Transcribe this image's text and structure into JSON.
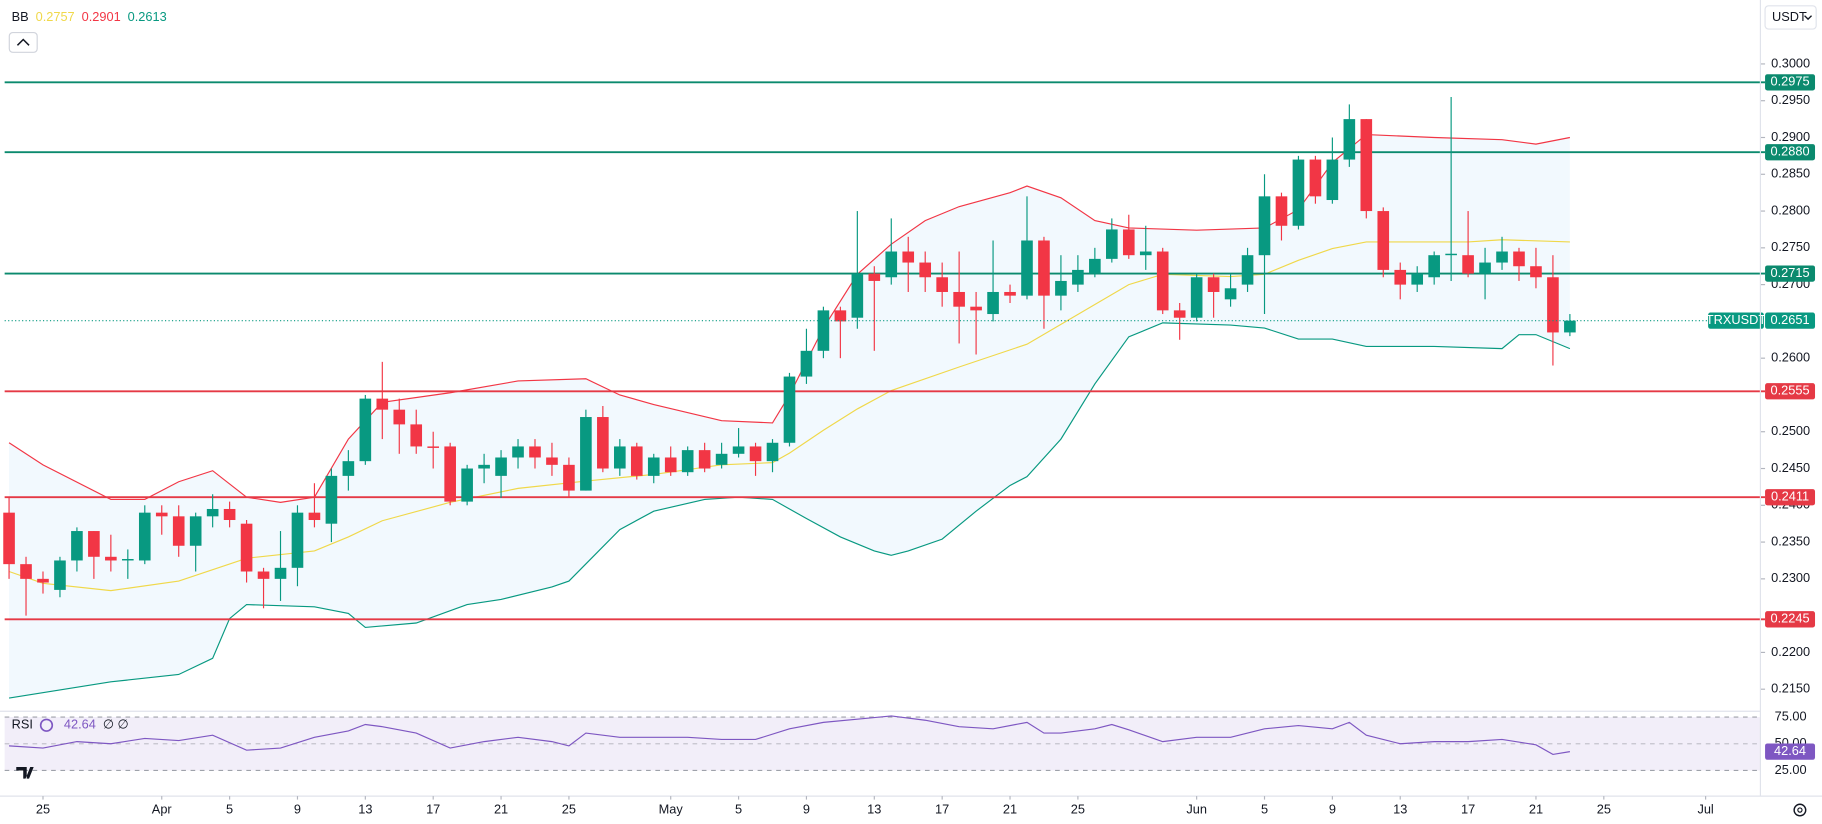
{
  "header": {
    "currency": "USDT"
  },
  "chart_data": [
    {
      "type": "candlestick",
      "symbol": "TRXUSDT",
      "indicator": "BB",
      "indicator_values": [
        0.2757,
        0.2901,
        0.2613
      ],
      "last": 0.2651,
      "last_color": "#089981",
      "up_color": "#089981",
      "down_color": "#f23645",
      "band_fill": "#2196f3",
      "x": [
        -2,
        -1,
        0,
        1,
        2,
        3,
        4,
        5,
        6,
        7,
        8,
        9,
        10,
        11,
        12,
        13,
        14,
        15,
        16,
        17,
        18,
        19,
        20,
        21,
        22,
        23,
        24,
        25,
        26,
        27,
        28,
        29,
        30,
        31,
        32,
        33,
        34,
        35,
        36,
        37,
        38,
        39,
        40,
        41,
        42,
        43,
        44,
        45,
        46,
        47,
        48,
        49,
        50,
        51,
        52,
        53,
        54,
        55,
        56,
        57,
        58,
        59,
        60,
        61,
        62,
        63,
        64,
        65,
        66,
        67,
        68,
        69,
        70,
        71,
        72,
        73,
        74,
        75,
        76,
        77,
        78,
        79,
        80,
        81,
        82,
        83,
        84,
        85,
        86,
        87,
        88,
        89,
        90
      ],
      "open": [
        0.239,
        0.232,
        0.23,
        0.2285,
        0.2325,
        0.2365,
        0.233,
        0.2325,
        0.2325,
        0.239,
        0.2385,
        0.2345,
        0.2385,
        0.2395,
        0.2375,
        0.231,
        0.23,
        0.2315,
        0.239,
        0.2375,
        0.244,
        0.246,
        0.2545,
        0.253,
        0.251,
        0.248,
        0.248,
        0.2405,
        0.245,
        0.244,
        0.2465,
        0.248,
        0.2465,
        0.2455,
        0.242,
        0.252,
        0.245,
        0.248,
        0.244,
        0.2465,
        0.2445,
        0.2475,
        0.2455,
        0.247,
        0.248,
        0.246,
        0.2485,
        0.2575,
        0.261,
        0.2665,
        0.2655,
        0.2715,
        0.271,
        0.2745,
        0.273,
        0.271,
        0.269,
        0.267,
        0.266,
        0.269,
        0.2685,
        0.276,
        0.2685,
        0.27,
        0.2715,
        0.2735,
        0.2775,
        0.274,
        0.2745,
        0.2665,
        0.2655,
        0.271,
        0.268,
        0.27,
        0.274,
        0.282,
        0.278,
        0.287,
        0.2815,
        0.287,
        0.2925,
        0.28,
        0.272,
        0.27,
        0.271,
        0.274,
        0.274,
        0.2715,
        0.273,
        0.2745,
        0.2725,
        0.271,
        0.2635
      ],
      "close": [
        0.232,
        0.23,
        0.2295,
        0.2325,
        0.2365,
        0.233,
        0.2325,
        0.2327,
        0.239,
        0.2385,
        0.2345,
        0.2385,
        0.2395,
        0.238,
        0.231,
        0.23,
        0.2315,
        0.239,
        0.238,
        0.244,
        0.246,
        0.2545,
        0.253,
        0.251,
        0.248,
        0.2478,
        0.2405,
        0.245,
        0.2455,
        0.2465,
        0.248,
        0.2465,
        0.2455,
        0.242,
        0.252,
        0.245,
        0.248,
        0.244,
        0.2465,
        0.2445,
        0.2475,
        0.245,
        0.247,
        0.248,
        0.246,
        0.2485,
        0.2575,
        0.261,
        0.2665,
        0.265,
        0.2715,
        0.2705,
        0.2745,
        0.273,
        0.271,
        0.269,
        0.267,
        0.2665,
        0.269,
        0.2685,
        0.276,
        0.2685,
        0.2705,
        0.272,
        0.2735,
        0.2775,
        0.274,
        0.2745,
        0.2665,
        0.2655,
        0.271,
        0.269,
        0.2695,
        0.274,
        0.282,
        0.278,
        0.287,
        0.282,
        0.287,
        0.2925,
        0.28,
        0.272,
        0.27,
        0.2715,
        0.274,
        0.2742,
        0.2715,
        0.273,
        0.2745,
        0.2725,
        0.271,
        0.2635,
        0.2651
      ],
      "high": [
        0.241,
        0.233,
        0.231,
        0.233,
        0.237,
        0.2365,
        0.236,
        0.234,
        0.24,
        0.24,
        0.24,
        0.239,
        0.2415,
        0.2405,
        0.238,
        0.2315,
        0.2365,
        0.24,
        0.243,
        0.245,
        0.2475,
        0.255,
        0.2595,
        0.2545,
        0.253,
        0.25,
        0.2485,
        0.2455,
        0.247,
        0.2475,
        0.249,
        0.249,
        0.2485,
        0.2465,
        0.253,
        0.2535,
        0.249,
        0.2485,
        0.247,
        0.248,
        0.248,
        0.2485,
        0.2485,
        0.2505,
        0.2485,
        0.249,
        0.258,
        0.264,
        0.267,
        0.267,
        0.28,
        0.2725,
        0.279,
        0.2765,
        0.2745,
        0.273,
        0.2745,
        0.269,
        0.276,
        0.27,
        0.282,
        0.2765,
        0.274,
        0.274,
        0.275,
        0.279,
        0.2795,
        0.278,
        0.275,
        0.2675,
        0.2715,
        0.2715,
        0.2715,
        0.275,
        0.285,
        0.2825,
        0.2875,
        0.2875,
        0.29,
        0.2945,
        0.2925,
        0.2805,
        0.273,
        0.2725,
        0.2745,
        0.2955,
        0.28,
        0.275,
        0.2765,
        0.275,
        0.275,
        0.274,
        0.266
      ],
      "low": [
        0.23,
        0.225,
        0.228,
        0.2275,
        0.231,
        0.23,
        0.231,
        0.23,
        0.232,
        0.236,
        0.233,
        0.231,
        0.237,
        0.237,
        0.2295,
        0.226,
        0.227,
        0.229,
        0.237,
        0.235,
        0.242,
        0.2455,
        0.249,
        0.247,
        0.247,
        0.245,
        0.24,
        0.24,
        0.243,
        0.241,
        0.245,
        0.245,
        0.244,
        0.241,
        0.242,
        0.2445,
        0.244,
        0.2435,
        0.243,
        0.244,
        0.244,
        0.2445,
        0.245,
        0.2465,
        0.244,
        0.2445,
        0.248,
        0.2565,
        0.26,
        0.26,
        0.264,
        0.261,
        0.27,
        0.269,
        0.269,
        0.267,
        0.262,
        0.2605,
        0.265,
        0.2675,
        0.268,
        0.264,
        0.2665,
        0.269,
        0.271,
        0.273,
        0.2735,
        0.272,
        0.266,
        0.2625,
        0.265,
        0.2655,
        0.267,
        0.269,
        0.266,
        0.276,
        0.2775,
        0.281,
        0.281,
        0.286,
        0.279,
        0.271,
        0.268,
        0.269,
        0.27,
        0.2705,
        0.271,
        0.268,
        0.272,
        0.2705,
        0.2695,
        0.259,
        0.263
      ],
      "bands": [
        {
          "color": "#f0d84a",
          "x": [
            -2,
            0,
            4,
            8,
            12,
            16,
            18,
            20,
            24,
            28,
            32,
            36,
            40,
            43,
            44,
            46,
            48,
            50,
            54,
            58,
            62,
            64,
            66,
            70,
            72,
            74,
            76,
            78,
            84,
            86,
            90
          ],
          "values": [
            0.231,
            0.2294,
            0.2284,
            0.2297,
            0.2328,
            0.2338,
            0.2357,
            0.2379,
            0.2404,
            0.2423,
            0.2433,
            0.2442,
            0.2455,
            0.2458,
            0.2471,
            0.2502,
            0.2531,
            0.2556,
            0.2588,
            0.2619,
            0.2673,
            0.27,
            0.2714,
            0.2711,
            0.2714,
            0.2733,
            0.2749,
            0.2758,
            0.2758,
            0.2761,
            0.2758
          ]
        },
        {
          "color": "#f23645",
          "x": [
            -2,
            0,
            4,
            6,
            8,
            10,
            12,
            14,
            16,
            18,
            20,
            24,
            28,
            32,
            34,
            36,
            40,
            43,
            44,
            46,
            48,
            50,
            52,
            54,
            57,
            58,
            60,
            62,
            64,
            68,
            72,
            74,
            76,
            78,
            82,
            86,
            88,
            90
          ],
          "values": [
            0.2485,
            0.2455,
            0.2408,
            0.2408,
            0.2432,
            0.2447,
            0.2411,
            0.2404,
            0.2411,
            0.249,
            0.254,
            0.2553,
            0.2569,
            0.2572,
            0.255,
            0.2537,
            0.2515,
            0.2512,
            0.255,
            0.2641,
            0.2714,
            0.2755,
            0.2787,
            0.2806,
            0.2825,
            0.2834,
            0.2818,
            0.2787,
            0.2777,
            0.2774,
            0.2777,
            0.2802,
            0.2866,
            0.2904,
            0.29,
            0.2897,
            0.2891,
            0.29
          ]
        },
        {
          "color": "#089981",
          "x": [
            -2,
            4,
            8,
            10,
            11,
            12,
            16,
            18,
            19,
            22,
            25,
            27,
            30,
            31,
            34,
            36,
            39,
            41,
            43,
            45,
            47,
            49,
            50,
            51,
            53,
            55,
            57,
            58,
            60,
            62,
            64,
            66,
            70,
            72,
            74,
            76,
            78,
            82,
            86,
            87,
            88,
            90
          ],
          "values": [
            0.2138,
            0.216,
            0.217,
            0.2192,
            0.2246,
            0.2265,
            0.2262,
            0.2253,
            0.2234,
            0.224,
            0.2265,
            0.2272,
            0.2289,
            0.2297,
            0.2367,
            0.2392,
            0.2408,
            0.2411,
            0.2408,
            0.2382,
            0.2357,
            0.2338,
            0.2332,
            0.2338,
            0.2354,
            0.2392,
            0.2427,
            0.2439,
            0.249,
            0.2565,
            0.2629,
            0.2648,
            0.2645,
            0.2641,
            0.2626,
            0.2626,
            0.2616,
            0.2616,
            0.2613,
            0.2632,
            0.2632,
            0.2613
          ]
        }
      ],
      "levels": [
        {
          "value": 0.2975,
          "label": "0.2975",
          "color": "#0b8a6e"
        },
        {
          "value": 0.288,
          "label": "0.2880",
          "color": "#0b8a6e"
        },
        {
          "value": 0.2715,
          "label": "0.2715",
          "color": "#0b8a6e"
        },
        {
          "value": 0.2555,
          "label": "0.2555",
          "color": "#e53945"
        },
        {
          "value": 0.2411,
          "label": "0.2411",
          "color": "#e53945"
        },
        {
          "value": 0.2245,
          "label": "0.2245",
          "color": "#e53945"
        }
      ],
      "xlim": [
        -2.26,
        101.23
      ],
      "ylim": [
        0.212,
        0.3049
      ],
      "yticks": [
        {
          "value": 0.3,
          "label": "0.3000"
        },
        {
          "value": 0.295,
          "label": "0.2950"
        },
        {
          "value": 0.29,
          "label": "0.2900"
        },
        {
          "value": 0.285,
          "label": "0.2850"
        },
        {
          "value": 0.28,
          "label": "0.2800"
        },
        {
          "value": 0.275,
          "label": "0.2750"
        },
        {
          "value": 0.27,
          "label": "0.2700"
        },
        {
          "value": 0.26,
          "label": "0.2600"
        },
        {
          "value": 0.25,
          "label": "0.2500"
        },
        {
          "value": 0.245,
          "label": "0.2450"
        },
        {
          "value": 0.24,
          "label": "0.2400"
        },
        {
          "value": 0.235,
          "label": "0.2350"
        },
        {
          "value": 0.23,
          "label": "0.2300"
        },
        {
          "value": 0.22,
          "label": "0.2200"
        },
        {
          "value": 0.215,
          "label": "0.2150"
        }
      ],
      "xticks": [
        {
          "value": 0,
          "label": "25"
        },
        {
          "value": 7,
          "label": "Apr"
        },
        {
          "value": 11,
          "label": "5"
        },
        {
          "value": 15,
          "label": "9"
        },
        {
          "value": 19,
          "label": "13"
        },
        {
          "value": 23,
          "label": "17"
        },
        {
          "value": 27,
          "label": "21"
        },
        {
          "value": 31,
          "label": "25"
        },
        {
          "value": 37,
          "label": "May"
        },
        {
          "value": 41,
          "label": "5"
        },
        {
          "value": 45,
          "label": "9"
        },
        {
          "value": 49,
          "label": "13"
        },
        {
          "value": 53,
          "label": "17"
        },
        {
          "value": 57,
          "label": "21"
        },
        {
          "value": 61,
          "label": "25"
        },
        {
          "value": 68,
          "label": "Jun"
        },
        {
          "value": 72,
          "label": "5"
        },
        {
          "value": 76,
          "label": "9"
        },
        {
          "value": 80,
          "label": "13"
        },
        {
          "value": 84,
          "label": "17"
        },
        {
          "value": 88,
          "label": "21"
        },
        {
          "value": 92,
          "label": "25"
        },
        {
          "value": 98,
          "label": "Jul"
        }
      ]
    },
    {
      "type": "line",
      "title": "RSI",
      "params": "∅ ∅",
      "color": "#7e57c2",
      "x": [
        -2,
        0,
        2,
        4,
        6,
        8,
        10,
        12,
        14,
        16,
        18,
        19,
        20,
        22,
        24,
        26,
        28,
        30,
        31,
        32,
        34,
        36,
        38,
        40,
        42,
        44,
        46,
        48,
        50,
        52,
        54,
        56,
        58,
        59,
        60,
        62,
        63,
        64,
        66,
        68,
        70,
        72,
        74,
        76,
        77,
        78,
        80,
        82,
        84,
        86,
        88,
        89,
        90
      ],
      "values": [
        48,
        46,
        52,
        50,
        55,
        53,
        58,
        44,
        46,
        56,
        62,
        68,
        66,
        60,
        46,
        52,
        56,
        52,
        48,
        60,
        56,
        56,
        56,
        54,
        54,
        64,
        70,
        73,
        76,
        72,
        66,
        64,
        70,
        60,
        60,
        64,
        68,
        63,
        52,
        56,
        56,
        64,
        67,
        64,
        70,
        58,
        50,
        52,
        52,
        54,
        49,
        40,
        42.64
      ],
      "ylim": [
        1,
        80.4
      ],
      "yticks": [
        {
          "value": 75,
          "label": "75.00"
        },
        {
          "value": 50,
          "label": "50.00"
        },
        {
          "value": 25,
          "label": "25.00"
        }
      ]
    }
  ]
}
